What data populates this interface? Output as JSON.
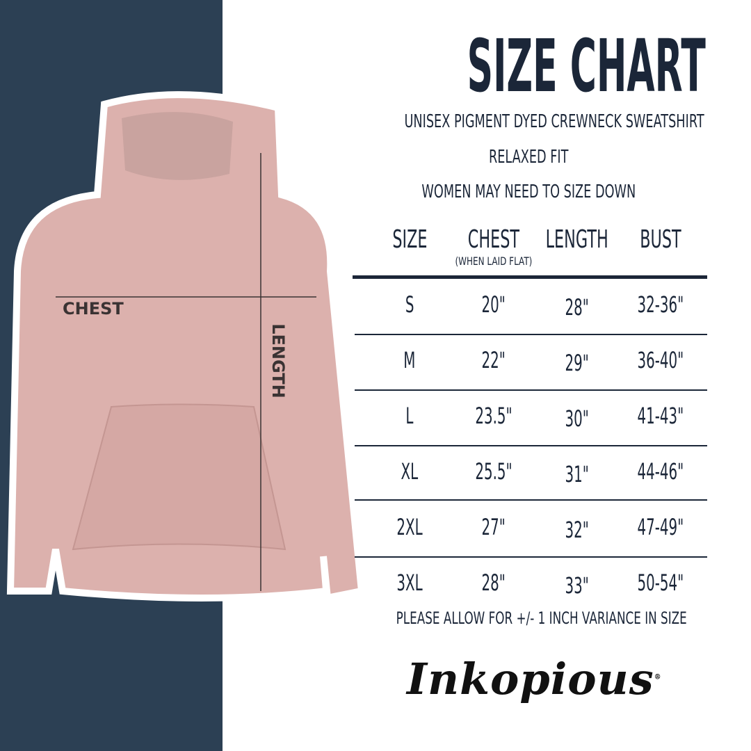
{
  "title": "SIZE CHART",
  "subtitle": "UNISEX PIGMENT DYED CREWNECK SWEATSHIRT",
  "fit": "RELAXED FIT",
  "note": "WOMEN MAY NEED TO SIZE DOWN",
  "image_labels": {
    "chest": "CHEST",
    "length": "LENGTH"
  },
  "table": {
    "headers": [
      "SIZE",
      "CHEST",
      "LENGTH",
      "BUST"
    ],
    "chest_note": "(WHEN LAID FLAT)",
    "rows": [
      [
        "S",
        "20\"",
        "28\"",
        "32-36\""
      ],
      [
        "M",
        "22\"",
        "29\"",
        "36-40\""
      ],
      [
        "L",
        "23.5\"",
        "30\"",
        "41-43\""
      ],
      [
        "XL",
        "25.5\"",
        "31\"",
        "44-46\""
      ],
      [
        "2XL",
        "27\"",
        "32\"",
        "47-49\""
      ],
      [
        "3XL",
        "28\"",
        "33\"",
        "50-54\""
      ]
    ]
  },
  "footer": "PLEASE ALLOW FOR +/- 1 INCH VARIANCE IN SIZE",
  "brand": "Inkopious",
  "colors": {
    "navy": "#2c4054",
    "text": "#1b2638",
    "hoodie": "#dcb1ad"
  }
}
